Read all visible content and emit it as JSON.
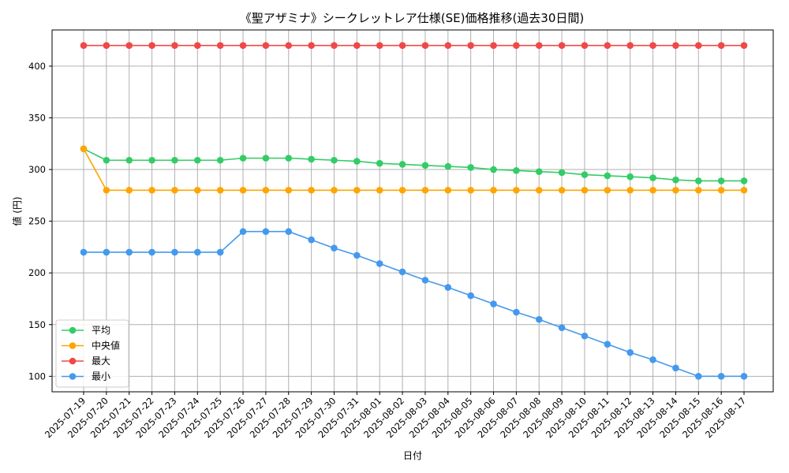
{
  "chart_data": {
    "type": "line",
    "title": "《聖アザミナ》シークレットレア仕様(SE)価格推移(過去30日間)",
    "xlabel": "日付",
    "ylabel": "値 (円)",
    "ylim": [
      85,
      435
    ],
    "yticks": [
      100,
      150,
      200,
      250,
      300,
      350,
      400
    ],
    "grid": true,
    "legend_position": "lower-left",
    "categories": [
      "2025-07-19",
      "2025-07-20",
      "2025-07-21",
      "2025-07-22",
      "2025-07-23",
      "2025-07-24",
      "2025-07-25",
      "2025-07-26",
      "2025-07-27",
      "2025-07-28",
      "2025-07-29",
      "2025-07-30",
      "2025-07-31",
      "2025-08-01",
      "2025-08-02",
      "2025-08-03",
      "2025-08-04",
      "2025-08-05",
      "2025-08-06",
      "2025-08-07",
      "2025-08-08",
      "2025-08-09",
      "2025-08-10",
      "2025-08-11",
      "2025-08-12",
      "2025-08-13",
      "2025-08-14",
      "2025-08-15",
      "2025-08-16",
      "2025-08-17"
    ],
    "series": [
      {
        "name": "平均",
        "color": "#33cc66",
        "values": [
          320,
          309,
          309,
          309,
          309,
          309,
          309,
          311,
          311,
          311,
          310,
          309,
          308,
          306,
          305,
          304,
          303,
          302,
          300,
          299,
          298,
          297,
          295,
          294,
          293,
          292,
          290,
          289,
          289,
          289
        ]
      },
      {
        "name": "中央値",
        "color": "#ffa500",
        "values": [
          320,
          280,
          280,
          280,
          280,
          280,
          280,
          280,
          280,
          280,
          280,
          280,
          280,
          280,
          280,
          280,
          280,
          280,
          280,
          280,
          280,
          280,
          280,
          280,
          280,
          280,
          280,
          280,
          280,
          280
        ]
      },
      {
        "name": "最大",
        "color": "#f04848",
        "values": [
          420,
          420,
          420,
          420,
          420,
          420,
          420,
          420,
          420,
          420,
          420,
          420,
          420,
          420,
          420,
          420,
          420,
          420,
          420,
          420,
          420,
          420,
          420,
          420,
          420,
          420,
          420,
          420,
          420,
          420
        ]
      },
      {
        "name": "最小",
        "color": "#4499ee",
        "values": [
          220,
          220,
          220,
          220,
          220,
          220,
          220,
          240,
          240,
          240,
          232,
          224,
          217,
          209,
          201,
          193,
          186,
          178,
          170,
          162,
          155,
          147,
          139,
          131,
          123,
          116,
          108,
          100,
          100,
          100
        ]
      }
    ]
  }
}
